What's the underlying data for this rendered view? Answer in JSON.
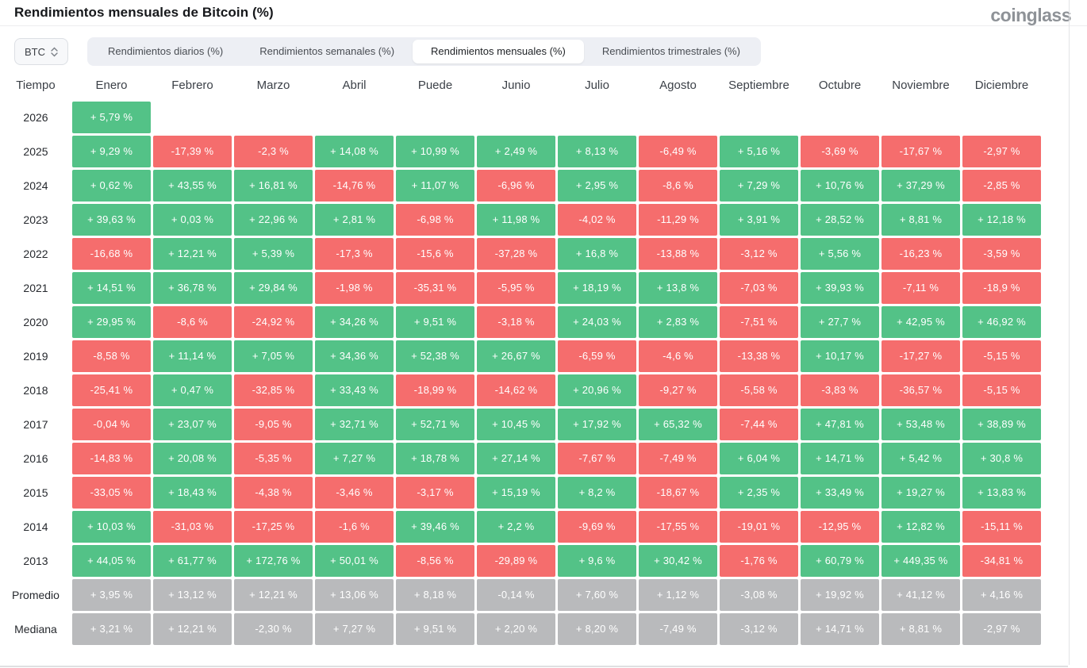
{
  "header": {
    "title": "Rendimientos mensuales de Bitcoin (%)",
    "logo": "coinglass"
  },
  "toolbar": {
    "coin_selector": {
      "value": "BTC",
      "icon": "updown-chevron-icon"
    },
    "tabs": [
      {
        "label": "Rendimientos diarios (%)",
        "active": false
      },
      {
        "label": "Rendimientos semanales (%)",
        "active": false
      },
      {
        "label": "Rendimientos mensuales (%)",
        "active": true
      },
      {
        "label": "Rendimientos trimestrales (%)",
        "active": false
      }
    ]
  },
  "chart_data": {
    "type": "heatmap",
    "title": "Rendimientos mensuales de Bitcoin (%)",
    "columns": [
      "Tiempo",
      "Enero",
      "Febrero",
      "Marzo",
      "Abril",
      "Puede",
      "Junio",
      "Julio",
      "Agosto",
      "Septiembre",
      "Octubre",
      "Noviembre",
      "Diciembre"
    ],
    "legend": {
      "positive_color": "#53c287",
      "negative_color": "#f56d6d",
      "summary_color": "#b9babc"
    },
    "rows": [
      {
        "label": "2026",
        "kind": "year",
        "cells": [
          "+ 5,79 %",
          null,
          null,
          null,
          null,
          null,
          null,
          null,
          null,
          null,
          null,
          null
        ]
      },
      {
        "label": "2025",
        "kind": "year",
        "cells": [
          "+ 9,29 %",
          "-17,39 %",
          "-2,3 %",
          "+ 14,08 %",
          "+ 10,99 %",
          "+ 2,49 %",
          "+ 8,13 %",
          "-6,49 %",
          "+ 5,16 %",
          "-3,69 %",
          "-17,67 %",
          "-2,97 %"
        ]
      },
      {
        "label": "2024",
        "kind": "year",
        "cells": [
          "+ 0,62 %",
          "+ 43,55 %",
          "+ 16,81 %",
          "-14,76 %",
          "+ 11,07 %",
          "-6,96 %",
          "+ 2,95 %",
          "-8,6 %",
          "+ 7,29 %",
          "+ 10,76 %",
          "+ 37,29 %",
          "-2,85 %"
        ]
      },
      {
        "label": "2023",
        "kind": "year",
        "cells": [
          "+ 39,63 %",
          "+ 0,03 %",
          "+ 22,96 %",
          "+ 2,81 %",
          "-6,98 %",
          "+ 11,98 %",
          "-4,02 %",
          "-11,29 %",
          "+ 3,91 %",
          "+ 28,52 %",
          "+ 8,81 %",
          "+ 12,18 %"
        ]
      },
      {
        "label": "2022",
        "kind": "year",
        "cells": [
          "-16,68 %",
          "+ 12,21 %",
          "+ 5,39 %",
          "-17,3 %",
          "-15,6 %",
          "-37,28 %",
          "+ 16,8 %",
          "-13,88 %",
          "-3,12 %",
          "+ 5,56 %",
          "-16,23 %",
          "-3,59 %"
        ]
      },
      {
        "label": "2021",
        "kind": "year",
        "cells": [
          "+ 14,51 %",
          "+ 36,78 %",
          "+ 29,84 %",
          "-1,98 %",
          "-35,31 %",
          "-5,95 %",
          "+ 18,19 %",
          "+ 13,8 %",
          "-7,03 %",
          "+ 39,93 %",
          "-7,11 %",
          "-18,9 %"
        ]
      },
      {
        "label": "2020",
        "kind": "year",
        "cells": [
          "+ 29,95 %",
          "-8,6 %",
          "-24,92 %",
          "+ 34,26 %",
          "+ 9,51 %",
          "-3,18 %",
          "+ 24,03 %",
          "+ 2,83 %",
          "-7,51 %",
          "+ 27,7 %",
          "+ 42,95 %",
          "+ 46,92 %"
        ]
      },
      {
        "label": "2019",
        "kind": "year",
        "cells": [
          "-8,58 %",
          "+ 11,14 %",
          "+ 7,05 %",
          "+ 34,36 %",
          "+ 52,38 %",
          "+ 26,67 %",
          "-6,59 %",
          "-4,6 %",
          "-13,38 %",
          "+ 10,17 %",
          "-17,27 %",
          "-5,15 %"
        ]
      },
      {
        "label": "2018",
        "kind": "year",
        "cells": [
          "-25,41 %",
          "+ 0,47 %",
          "-32,85 %",
          "+ 33,43 %",
          "-18,99 %",
          "-14,62 %",
          "+ 20,96 %",
          "-9,27 %",
          "-5,58 %",
          "-3,83 %",
          "-36,57 %",
          "-5,15 %"
        ]
      },
      {
        "label": "2017",
        "kind": "year",
        "cells": [
          "-0,04 %",
          "+ 23,07 %",
          "-9,05 %",
          "+ 32,71 %",
          "+ 52,71 %",
          "+ 10,45 %",
          "+ 17,92 %",
          "+ 65,32 %",
          "-7,44 %",
          "+ 47,81 %",
          "+ 53,48 %",
          "+ 38,89 %"
        ]
      },
      {
        "label": "2016",
        "kind": "year",
        "cells": [
          "-14,83 %",
          "+ 20,08 %",
          "-5,35 %",
          "+ 7,27 %",
          "+ 18,78 %",
          "+ 27,14 %",
          "-7,67 %",
          "-7,49 %",
          "+ 6,04 %",
          "+ 14,71 %",
          "+ 5,42 %",
          "+ 30,8 %"
        ]
      },
      {
        "label": "2015",
        "kind": "year",
        "cells": [
          "-33,05 %",
          "+ 18,43 %",
          "-4,38 %",
          "-3,46 %",
          "-3,17 %",
          "+ 15,19 %",
          "+ 8,2 %",
          "-18,67 %",
          "+ 2,35 %",
          "+ 33,49 %",
          "+ 19,27 %",
          "+ 13,83 %"
        ]
      },
      {
        "label": "2014",
        "kind": "year",
        "cells": [
          "+ 10,03 %",
          "-31,03 %",
          "-17,25 %",
          "-1,6 %",
          "+ 39,46 %",
          "+ 2,2 %",
          "-9,69 %",
          "-17,55 %",
          "-19,01 %",
          "-12,95 %",
          "+ 12,82 %",
          "-15,11 %"
        ]
      },
      {
        "label": "2013",
        "kind": "year",
        "cells": [
          "+ 44,05 %",
          "+ 61,77 %",
          "+ 172,76 %",
          "+ 50,01 %",
          "-8,56 %",
          "-29,89 %",
          "+ 9,6 %",
          "+ 30,42 %",
          "-1,76 %",
          "+ 60,79 %",
          "+ 449,35 %",
          "-34,81 %"
        ]
      },
      {
        "label": "Promedio",
        "kind": "summary",
        "cells": [
          "+ 3,95 %",
          "+ 13,12 %",
          "+ 12,21 %",
          "+ 13,06 %",
          "+ 8,18 %",
          "-0,14 %",
          "+ 7,60 %",
          "+ 1,12 %",
          "-3,08 %",
          "+ 19,92 %",
          "+ 41,12 %",
          "+ 4,16 %"
        ]
      },
      {
        "label": "Mediana",
        "kind": "summary",
        "cells": [
          "+ 3,21 %",
          "+ 12,21 %",
          "-2,30 %",
          "+ 7,27 %",
          "+ 9,51 %",
          "+ 2,20 %",
          "+ 8,20 %",
          "-7,49 %",
          "-3,12 %",
          "+ 14,71 %",
          "+ 8,81 %",
          "-2,97 %"
        ]
      }
    ]
  }
}
